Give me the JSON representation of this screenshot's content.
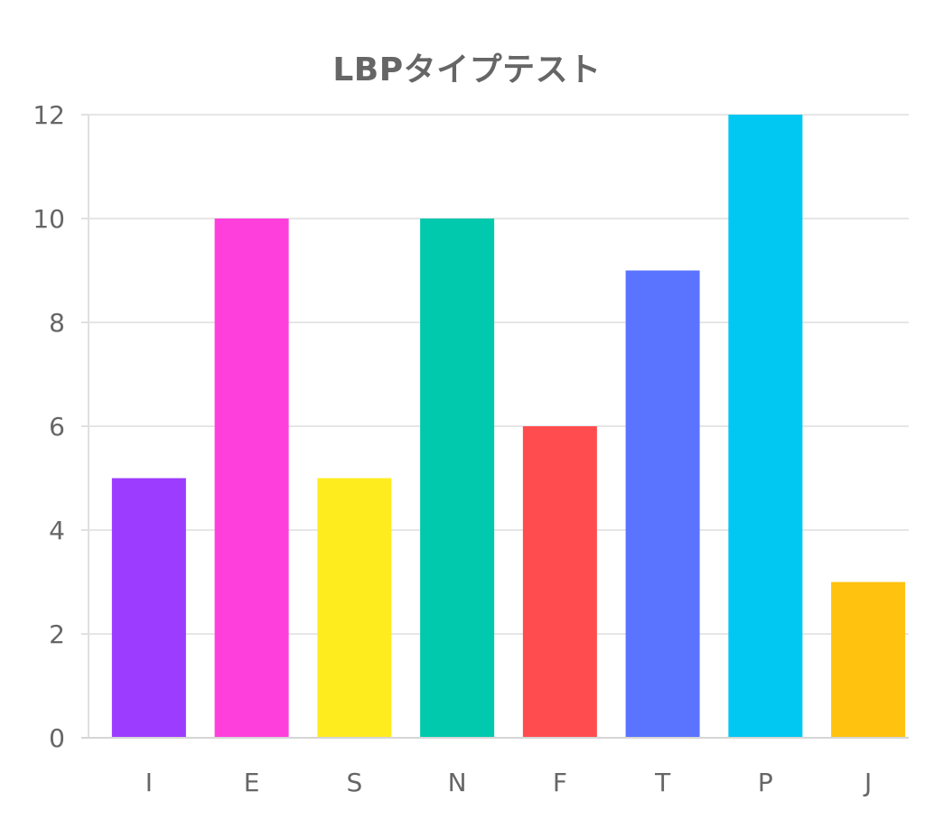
{
  "chart_data": {
    "type": "bar",
    "title": "LBPタイプテスト",
    "xlabel": "",
    "ylabel": "",
    "categories": [
      "I",
      "E",
      "S",
      "N",
      "F",
      "T",
      "P",
      "J"
    ],
    "values": [
      5,
      10,
      5,
      10,
      6,
      9,
      12,
      3
    ],
    "colors": [
      "#9b3cff",
      "#ff3fdc",
      "#ffec1f",
      "#00c9ae",
      "#ff4d4f",
      "#5b74ff",
      "#00c8f2",
      "#ffc20e"
    ],
    "ylim": [
      0,
      12
    ],
    "yticks": [
      0,
      2,
      4,
      6,
      8,
      10,
      12
    ],
    "grid": true,
    "legend": "none"
  }
}
